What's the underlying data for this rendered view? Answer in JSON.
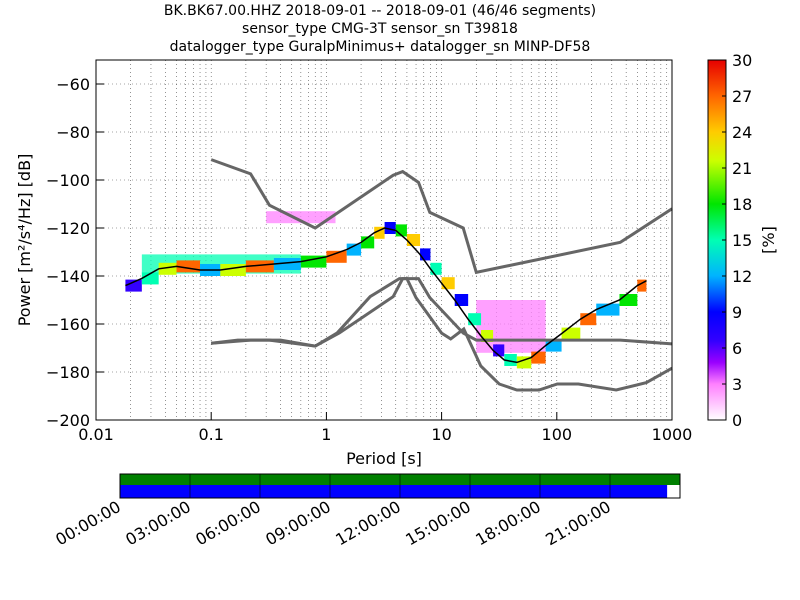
{
  "title_lines": [
    "BK.BK67.00.HHZ   2018-09-01 -- 2018-09-01  (46/46 segments)",
    "sensor_type CMG-3T sensor_sn T39818",
    "datalogger_type GuralpMinimus+ datalogger_sn MINP-DF58"
  ],
  "colorbar": {
    "label": "[%]",
    "ticks": [
      "0",
      "3",
      "6",
      "9",
      "12",
      "15",
      "18",
      "21",
      "24",
      "27",
      "30"
    ],
    "range": [
      0,
      30
    ]
  },
  "timeline": {
    "tick_labels": [
      "00:00:00",
      "03:00:00",
      "06:00:00",
      "09:00:00",
      "12:00:00",
      "15:00:00",
      "18:00:00",
      "21:00:00"
    ],
    "data_coverage_fraction": 1.0,
    "gap_free_fraction": 0.977,
    "colors": {
      "coverage": "#008000",
      "segments": "#0000ff"
    }
  },
  "chart_data": {
    "type": "heatmap",
    "xlabel": "Period [s]",
    "ylabel": "Power [m²/s⁴/Hz] [dB]",
    "xscale": "log",
    "xlim": [
      0.01,
      1000
    ],
    "ylim": [
      -200,
      -50
    ],
    "x_tick_labels": [
      "0.01",
      "0.1",
      "1",
      "10",
      "100",
      "1000"
    ],
    "y_tick_labels": [
      "−60",
      "−80",
      "−100",
      "−120",
      "−140",
      "−160",
      "−180",
      "−200"
    ],
    "y_ticks": [
      -60,
      -80,
      -100,
      -120,
      -140,
      -160,
      -180,
      -200
    ],
    "grid": true,
    "nhnm": {
      "period": [
        0.1,
        0.22,
        0.32,
        0.8,
        1.3,
        3.8,
        4.6,
        6.3,
        7.9,
        15.4,
        20,
        354.8,
        10000
      ],
      "power": [
        -168,
        -166.7,
        -166.7,
        -169.2,
        -163.7,
        -148.6,
        -141.1,
        -141.1,
        -149,
        -163.8,
        -166.7,
        -166.7,
        -168.3
      ]
    },
    "nlnm": {
      "period": [
        0.1,
        0.17,
        0.4,
        0.8,
        1.24,
        2.4,
        4.3,
        5,
        6,
        10,
        12,
        15.6,
        21.9,
        31.6,
        45,
        70,
        101,
        154,
        328,
        600,
        1000
      ],
      "power": [
        -168,
        -166.7,
        -166.7,
        -169.2,
        -163.7,
        -148.6,
        -141.1,
        -141.1,
        -149,
        -163.8,
        -166.2,
        -162.1,
        -177.5,
        -185,
        -187.5,
        -187.5,
        -185,
        -185,
        -187.5,
        -184.4,
        -178.4
      ]
    },
    "nhnm_upper": {
      "period": [
        0.1,
        0.22,
        0.32,
        0.8,
        3.8,
        4.6,
        6.3,
        7.9,
        15.4,
        20,
        354.8,
        1000
      ],
      "power": [
        -91.5,
        -97.4,
        -110.5,
        -120,
        -98,
        -96.5,
        -101,
        -113.5,
        -120,
        -138.5,
        -126,
        -112
      ]
    },
    "median_curve": {
      "period": [
        0.018,
        0.025,
        0.035,
        0.05,
        0.08,
        0.12,
        0.2,
        0.35,
        0.6,
        1,
        1.5,
        2,
        2.6,
        3.2,
        4,
        5,
        6.5,
        8,
        10,
        13,
        17,
        22,
        28,
        35,
        45,
        60,
        80,
        110,
        160,
        220,
        350,
        500,
        600
      ],
      "power": [
        -144,
        -141,
        -137,
        -136,
        -137.5,
        -137.5,
        -136,
        -135,
        -134,
        -132,
        -129,
        -126,
        -122,
        -120,
        -121,
        -125,
        -131,
        -137,
        -143,
        -150,
        -158,
        -165,
        -171,
        -175,
        -176,
        -174,
        -169,
        -164,
        -158,
        -154,
        -150,
        -144,
        -142
      ]
    },
    "density_bands": [
      {
        "period": [
          0.025,
          0.6
        ],
        "power": [
          -139,
          -131
        ],
        "level": 15
      },
      {
        "period": [
          0.3,
          1.2
        ],
        "power": [
          -118,
          -113
        ],
        "level": 4
      },
      {
        "period": [
          20,
          80
        ],
        "power": [
          -172,
          -150
        ],
        "level": 3
      }
    ]
  }
}
